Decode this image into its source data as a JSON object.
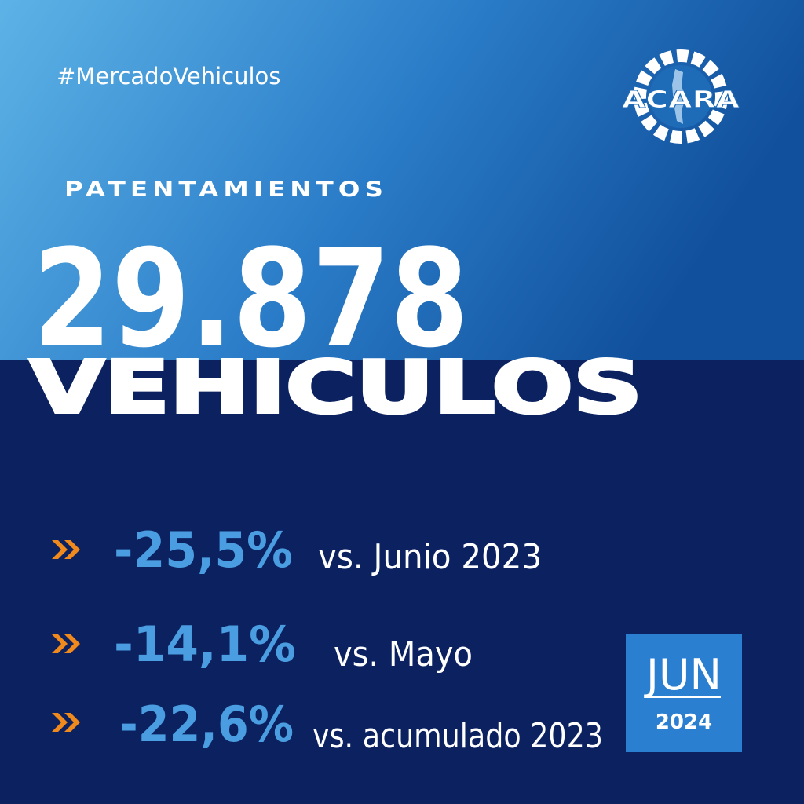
{
  "hashtag": "#MercadoVehiculos",
  "logo": "ACARA",
  "heading": "PATENTAMIENTOS",
  "total": "29.878",
  "unit": "VEHICULOS",
  "stats": [
    {
      "change": "-25,5%",
      "label": "vs. Junio 2023"
    },
    {
      "change": "-14,1%",
      "label": "vs. Mayo"
    },
    {
      "change": "-22,6%",
      "label": "vs. acumulado 2023"
    }
  ],
  "period": {
    "month": "JUN",
    "year": "2024"
  }
}
